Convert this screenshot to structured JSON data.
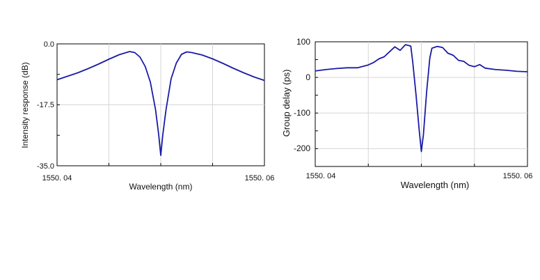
{
  "chart_data": [
    {
      "type": "line",
      "title": "",
      "xlabel": "Wavelength (nm)",
      "ylabel": "Intensity response (dB)",
      "xlim": [
        1550.04,
        1550.06
      ],
      "ylim": [
        -35.0,
        0.0
      ],
      "x_tick_labels": [
        "1550. 04",
        "1550. 06"
      ],
      "y_tick_labels": [
        "0.0",
        "-17.5",
        "-35.0"
      ],
      "grid": true,
      "color": "#1a1aa6",
      "series": [
        {
          "x": [
            1550.04,
            1550.041,
            1550.042,
            1550.043,
            1550.044,
            1550.045,
            1550.046,
            1550.047,
            1550.0475,
            1550.048,
            1550.0485,
            1550.049,
            1550.0495,
            1550.0498,
            1550.05,
            1550.0502,
            1550.0505,
            1550.051,
            1550.0515,
            1550.052,
            1550.0525,
            1550.053,
            1550.054,
            1550.055,
            1550.056,
            1550.057,
            1550.058,
            1550.059,
            1550.06
          ],
          "y": [
            -10.3,
            -9.3,
            -8.3,
            -7.1,
            -5.8,
            -4.4,
            -3.1,
            -2.2,
            -2.5,
            -3.8,
            -6.5,
            -11.0,
            -19.0,
            -26.0,
            -32.0,
            -26.0,
            -19.0,
            -10.0,
            -5.5,
            -3.0,
            -2.3,
            -2.5,
            -3.2,
            -4.3,
            -5.6,
            -7.0,
            -8.3,
            -9.5,
            -10.5
          ]
        }
      ]
    },
    {
      "type": "line",
      "title": "",
      "xlabel": "Wavelength (nm)",
      "ylabel": "Group delay (ps)",
      "xlim": [
        1550.04,
        1550.06
      ],
      "ylim": [
        -250,
        100
      ],
      "x_tick_labels": [
        "1550. 04",
        "1550. 06"
      ],
      "y_tick_labels": [
        "100",
        "0",
        "-100",
        "-200"
      ],
      "y_ticks": [
        100,
        0,
        -100,
        -200
      ],
      "grid": true,
      "color": "#1a1aa6",
      "series": [
        {
          "x": [
            1550.04,
            1550.041,
            1550.042,
            1550.043,
            1550.044,
            1550.045,
            1550.0455,
            1550.046,
            1550.0465,
            1550.047,
            1550.0475,
            1550.048,
            1550.0485,
            1550.049,
            1550.0492,
            1550.0495,
            1550.0498,
            1550.05,
            1550.0502,
            1550.0505,
            1550.0508,
            1550.051,
            1550.0515,
            1550.052,
            1550.0525,
            1550.053,
            1550.0535,
            1550.054,
            1550.0545,
            1550.055,
            1550.0555,
            1550.056,
            1550.057,
            1550.058,
            1550.059,
            1550.06
          ],
          "y": [
            18,
            22,
            25,
            27,
            27,
            35,
            42,
            52,
            58,
            72,
            86,
            76,
            92,
            88,
            40,
            -50,
            -150,
            -208,
            -160,
            -40,
            55,
            82,
            87,
            84,
            68,
            62,
            48,
            45,
            34,
            30,
            36,
            26,
            22,
            20,
            17,
            16
          ]
        }
      ]
    }
  ]
}
